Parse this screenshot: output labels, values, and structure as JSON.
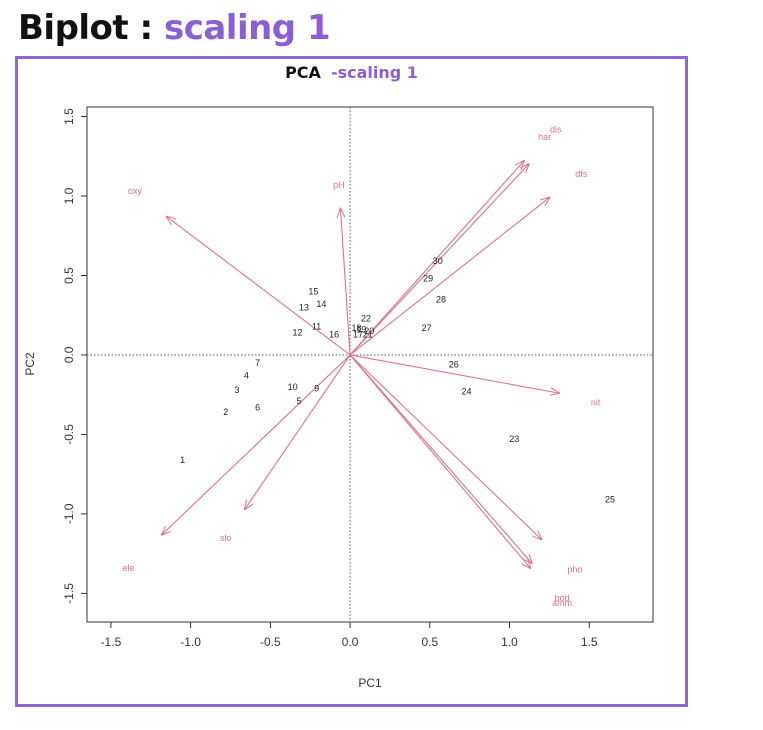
{
  "heading": {
    "prefix": "Biplot : ",
    "highlight": "scaling 1"
  },
  "plot_title": {
    "main": "PCA",
    "suffix": "-scaling 1"
  },
  "colors": {
    "accent": "#8d66d8",
    "loading": "#e0728a",
    "site_text": "#222222",
    "axis": "#333333"
  },
  "chart_data": {
    "type": "scatter",
    "xlabel": "PC1",
    "ylabel": "PC2",
    "xlim": [
      -1.65,
      1.9
    ],
    "ylim": [
      -1.68,
      1.56
    ],
    "xticks": [
      "-1.5",
      "-1.0",
      "-0.5",
      "0.0",
      "0.5",
      "1.0",
      "1.5"
    ],
    "yticks": [
      "-1.5",
      "-1.0",
      "-0.5",
      "0.0",
      "0.5",
      "1.0",
      "1.5"
    ],
    "reference_lines": {
      "x": 0,
      "y": 0,
      "style": "dotted"
    },
    "sites": [
      {
        "label": "1",
        "x": -1.05,
        "y": -0.66
      },
      {
        "label": "2",
        "x": -0.78,
        "y": -0.36
      },
      {
        "label": "3",
        "x": -0.71,
        "y": -0.22
      },
      {
        "label": "4",
        "x": -0.65,
        "y": -0.13
      },
      {
        "label": "5",
        "x": -0.32,
        "y": -0.29
      },
      {
        "label": "6",
        "x": -0.58,
        "y": -0.33
      },
      {
        "label": "7",
        "x": -0.58,
        "y": -0.05
      },
      {
        "label": "9",
        "x": -0.21,
        "y": -0.21
      },
      {
        "label": "10",
        "x": -0.36,
        "y": -0.2
      },
      {
        "label": "11",
        "x": -0.21,
        "y": 0.18
      },
      {
        "label": "12",
        "x": -0.33,
        "y": 0.14
      },
      {
        "label": "13",
        "x": -0.29,
        "y": 0.3
      },
      {
        "label": "14",
        "x": -0.18,
        "y": 0.32
      },
      {
        "label": "15",
        "x": -0.23,
        "y": 0.4
      },
      {
        "label": "16",
        "x": -0.1,
        "y": 0.13
      },
      {
        "label": "17",
        "x": 0.05,
        "y": 0.13
      },
      {
        "label": "18",
        "x": 0.04,
        "y": 0.17
      },
      {
        "label": "19",
        "x": 0.07,
        "y": 0.16
      },
      {
        "label": "20",
        "x": 0.12,
        "y": 0.15
      },
      {
        "label": "21",
        "x": 0.11,
        "y": 0.13
      },
      {
        "label": "22",
        "x": 0.1,
        "y": 0.23
      },
      {
        "label": "23",
        "x": 1.03,
        "y": -0.53
      },
      {
        "label": "24",
        "x": 0.73,
        "y": -0.23
      },
      {
        "label": "25",
        "x": 1.63,
        "y": -0.91
      },
      {
        "label": "26",
        "x": 0.65,
        "y": -0.06
      },
      {
        "label": "27",
        "x": 0.48,
        "y": 0.17
      },
      {
        "label": "28",
        "x": 0.57,
        "y": 0.35
      },
      {
        "label": "29",
        "x": 0.49,
        "y": 0.48
      },
      {
        "label": "30",
        "x": 0.55,
        "y": 0.59
      }
    ],
    "loadings": [
      {
        "label": "dis",
        "x": 1.09,
        "y": 1.22,
        "lx": 1.29,
        "ly": 1.42
      },
      {
        "label": "har",
        "x": 1.12,
        "y": 1.2,
        "lx": 1.22,
        "ly": 1.37
      },
      {
        "label": "dfs",
        "x": 1.25,
        "y": 0.99,
        "lx": 1.45,
        "ly": 1.14
      },
      {
        "label": "oxy",
        "x": -1.15,
        "y": 0.87,
        "lx": -1.35,
        "ly": 1.03
      },
      {
        "label": "pH",
        "x": -0.06,
        "y": 0.92,
        "lx": -0.07,
        "ly": 1.07
      },
      {
        "label": "nit",
        "x": 1.31,
        "y": -0.24,
        "lx": 1.54,
        "ly": -0.3
      },
      {
        "label": "pho",
        "x": 1.2,
        "y": -1.16,
        "lx": 1.41,
        "ly": -1.35
      },
      {
        "label": "bod",
        "x": 1.13,
        "y": -1.34,
        "lx": 1.33,
        "ly": -1.53
      },
      {
        "label": "amm",
        "x": 1.14,
        "y": -1.31,
        "lx": 1.33,
        "ly": -1.56
      },
      {
        "label": "ele",
        "x": -1.18,
        "y": -1.13,
        "lx": -1.39,
        "ly": -1.34
      },
      {
        "label": "slo",
        "x": -0.66,
        "y": -0.97,
        "lx": -0.78,
        "ly": -1.15
      }
    ]
  }
}
